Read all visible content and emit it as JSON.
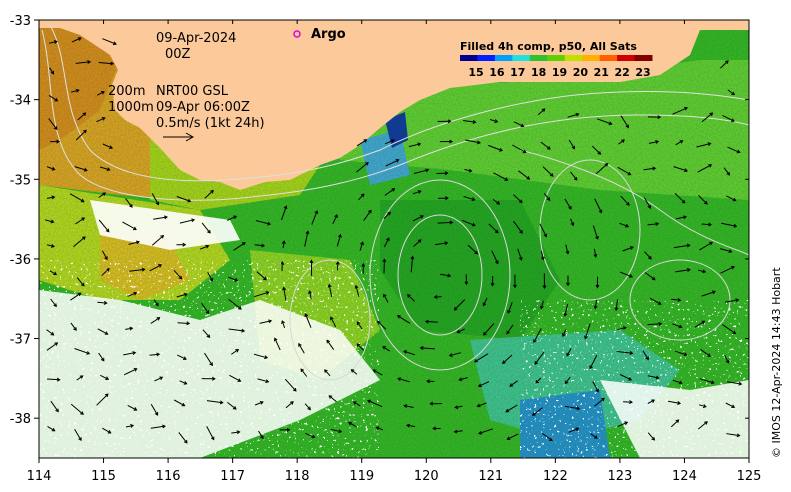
{
  "map": {
    "date": "09-Apr-2024",
    "time": "00Z",
    "depth_200": "200m",
    "depth_1000": "1000m",
    "product_line1": "NRT00 GSL",
    "product_line2": "09-Apr 06:00Z",
    "scale_arrow_label": "0.5m/s (1kt 24h)",
    "argo_label": "Argo",
    "credit": "© IMOS 12-Apr-2024 14:43 Hobart",
    "x_ticks": [
      "114",
      "115",
      "116",
      "117",
      "118",
      "119",
      "120",
      "121",
      "122",
      "123",
      "124",
      "125"
    ],
    "y_ticks": [
      "-33",
      "-34",
      "-35",
      "-36",
      "-37",
      "-38"
    ],
    "lon_range": [
      114,
      125
    ],
    "lat_range": [
      -38.5,
      -33
    ]
  },
  "colorbar": {
    "title": "Filled 4h comp, p50, All Sats",
    "ticks": [
      "15",
      "16",
      "17",
      "18",
      "19",
      "20",
      "21",
      "22",
      "23"
    ],
    "colors": [
      "#00008f",
      "#0020ff",
      "#00a0ff",
      "#20e0e0",
      "#30c030",
      "#60d000",
      "#c0e000",
      "#ffb000",
      "#ff6000",
      "#d00000",
      "#800000"
    ]
  },
  "colors": {
    "land": "#fbc99a",
    "argo": "#e000e0"
  }
}
